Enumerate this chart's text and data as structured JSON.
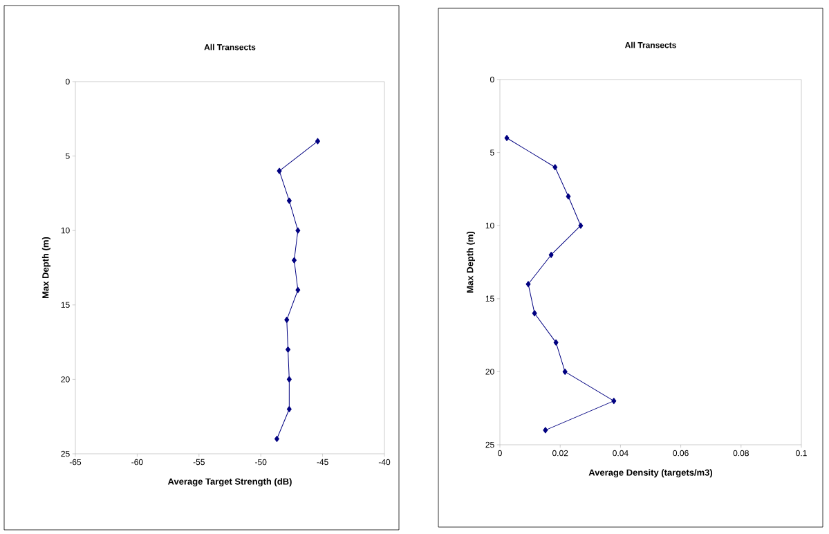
{
  "chart_data": [
    {
      "type": "line",
      "title": "All Transects",
      "xlabel": "Average Target Strength (dB)",
      "ylabel": "Max Depth (m)",
      "x": [
        -45.4,
        -48.5,
        -47.7,
        -47.0,
        -47.3,
        -47.0,
        -47.9,
        -47.8,
        -47.7,
        -47.7,
        -48.7
      ],
      "series": [
        {
          "color": "#000080",
          "values": [
            4,
            6,
            8,
            10,
            12,
            14,
            16,
            18,
            20,
            22,
            24
          ]
        }
      ],
      "xlim": [
        -65,
        -40
      ],
      "xticks": [
        -65,
        -60,
        -55,
        -50,
        -45,
        -40
      ],
      "ylim": [
        25,
        0
      ],
      "yticks": [
        0,
        5,
        10,
        15,
        20,
        25
      ],
      "marker": "diamond",
      "line_style": "solid",
      "grid": false
    },
    {
      "type": "line",
      "title": "All Transects",
      "xlabel": "Average Density (targets/m3)",
      "ylabel": "Max Depth (m)",
      "x": [
        0.0023,
        0.0183,
        0.0227,
        0.0268,
        0.017,
        0.0094,
        0.0115,
        0.0186,
        0.0216,
        0.0378,
        0.0151
      ],
      "series": [
        {
          "color": "#000080",
          "values": [
            4,
            6,
            8,
            10,
            12,
            14,
            16,
            18,
            20,
            22,
            24
          ]
        }
      ],
      "xlim": [
        0,
        0.1
      ],
      "xticks": [
        0,
        0.02,
        0.04,
        0.06,
        0.08,
        0.1
      ],
      "ylim": [
        25,
        0
      ],
      "yticks": [
        0,
        5,
        10,
        15,
        20,
        25
      ],
      "marker": "diamond",
      "line_style": "solid",
      "grid": false
    }
  ]
}
